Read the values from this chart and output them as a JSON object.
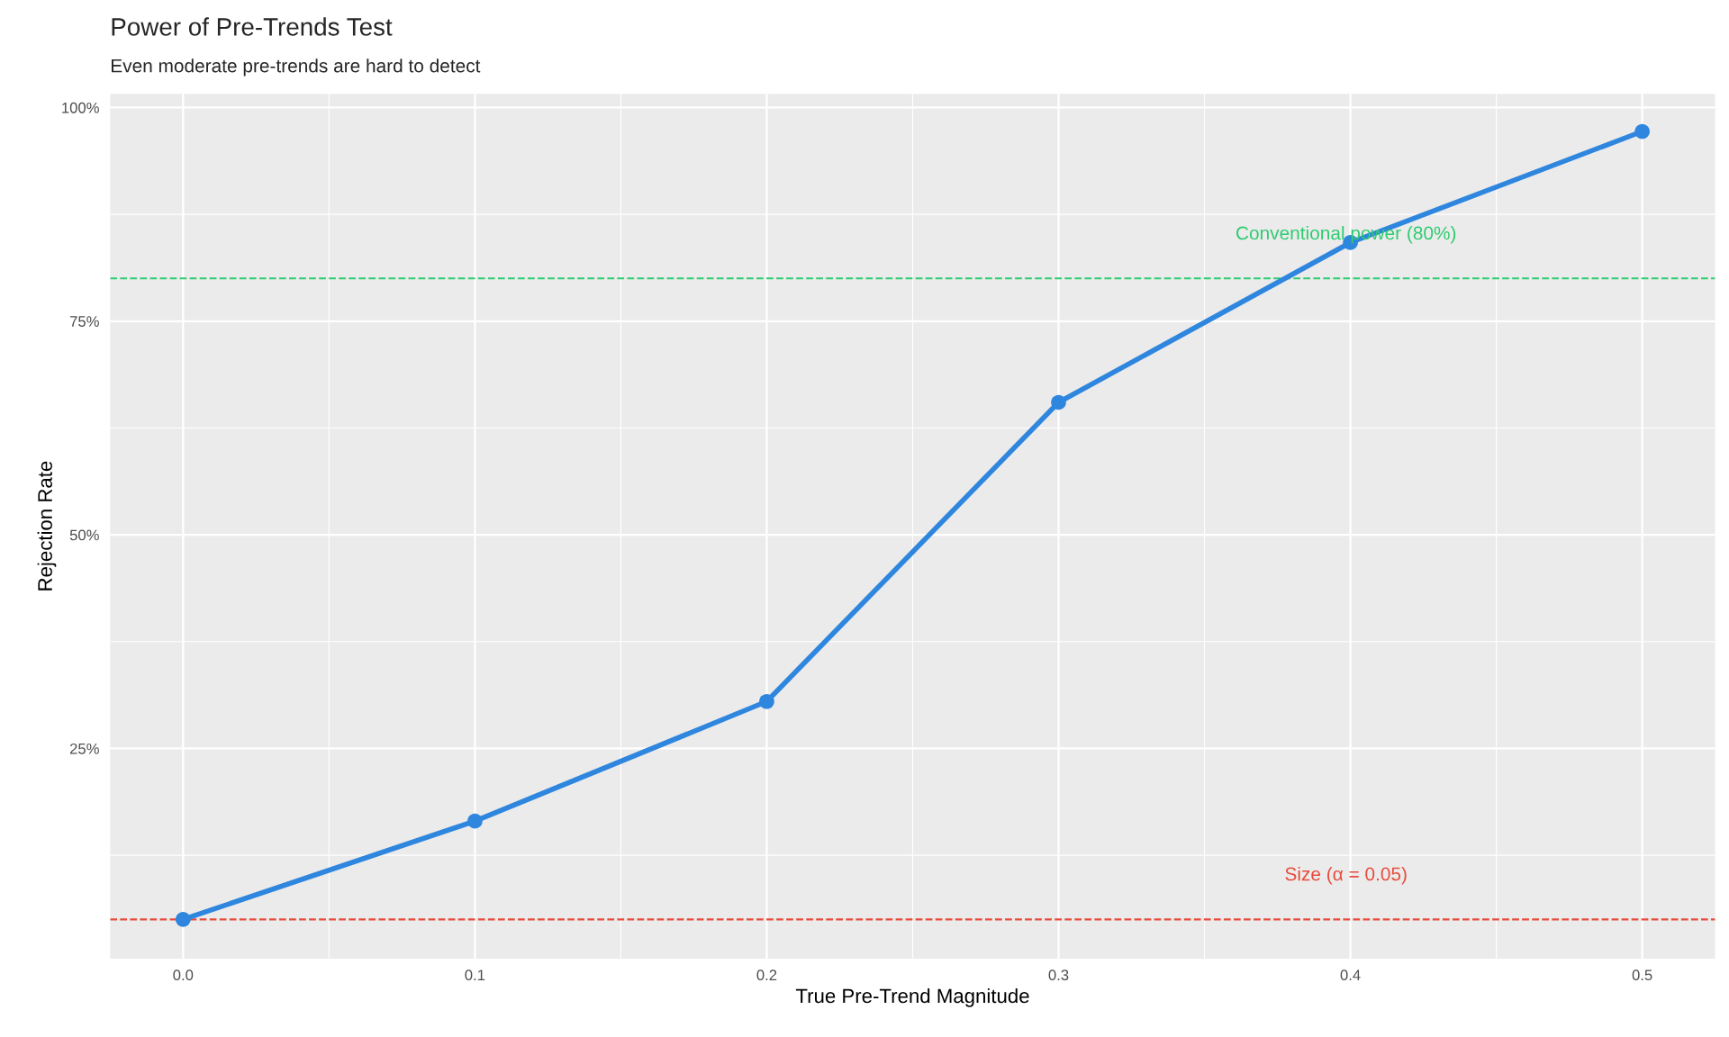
{
  "chart_data": {
    "type": "line",
    "title": "Power of Pre-Trends Test",
    "subtitle": "Even moderate pre-trends are hard to detect",
    "xlabel": "True Pre-Trend Magnitude",
    "ylabel": "Rejection Rate",
    "x": [
      0.0,
      0.1,
      0.2,
      0.3,
      0.4,
      0.5
    ],
    "series": [
      {
        "color": "#2e86de",
        "values": [
          0.05,
          0.165,
          0.305,
          0.655,
          0.842,
          0.972
        ]
      }
    ],
    "marker": "circle",
    "line_style": "solid",
    "grid": true,
    "xlim": [
      -0.025,
      0.525
    ],
    "ylim": [
      0.004,
      1.016
    ],
    "xticks": [
      {
        "value": 0,
        "label": "0.0"
      },
      0.1,
      0.2,
      0.3,
      0.4,
      0.5
    ],
    "yticks": [
      {
        "value": 0.25,
        "label": "25%"
      },
      {
        "value": 0.5,
        "label": "50%"
      },
      {
        "value": 0.75,
        "label": "75%"
      },
      {
        "value": 1,
        "label": "100%"
      }
    ],
    "ref_lines": [
      {
        "axis": "y",
        "value": 0.8,
        "color": "#2ecc71",
        "line_style": "dashed",
        "label": "Conventional power (80%)"
      },
      {
        "axis": "y",
        "value": 0.05,
        "color": "#e74c3c",
        "line_style": "dashed",
        "label": "Size (α = 0.05)"
      }
    ]
  }
}
